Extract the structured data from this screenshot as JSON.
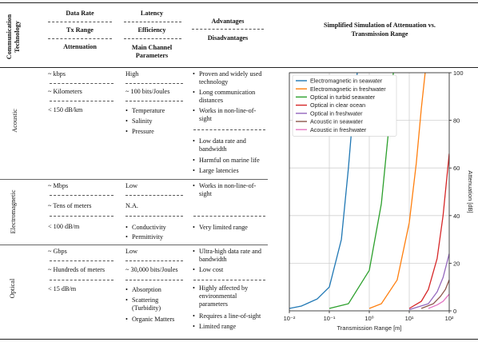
{
  "header": {
    "tech": "Communication Technology",
    "col1": [
      "Data Rate",
      "Tx Range",
      "Attenuation"
    ],
    "col2": [
      "Latency",
      "Efficiency",
      "Main Channel Parameters"
    ],
    "col3": [
      "Advantages",
      "Disadvantages"
    ],
    "col4": "Simplified Simulation of Attenuation vs. Transmission Range"
  },
  "rows": {
    "acoustic": {
      "name": "Acoustic",
      "rate": "~ kbps",
      "range": "~ Kilometers",
      "atten": "< 150 dB/km",
      "latency": "High",
      "efficiency": "~ 100 bits/Joules",
      "params": [
        "Temperature",
        "Salinity",
        "Pressure"
      ],
      "adv": [
        "Proven and widely used technology",
        "Long communication distances",
        "Works in non-line-of-sight"
      ],
      "dis": [
        "Low data rate and bandwidth",
        "Harmful on marine life",
        "Large latencies"
      ]
    },
    "electromagnetic": {
      "name": "Electromagnetic",
      "rate": "~ Mbps",
      "range": "~ Tens of meters",
      "atten": "< 100 dB/m",
      "latency": "Low",
      "efficiency": "N.A.",
      "params": [
        "Conductivity",
        "Permittivity"
      ],
      "adv": [
        "Works in non-line-of-sight"
      ],
      "dis": [
        "Very limited range"
      ]
    },
    "optical": {
      "name": "Optical",
      "rate": "~ Gbps",
      "range": "~ Hundreds of meters",
      "atten": "< 15 dB/m",
      "latency": "Low",
      "efficiency": "~ 30,000 bits/Joules",
      "params": [
        "Absorption",
        "Scattering (Turbidity)",
        "Organic Matters"
      ],
      "adv": [
        "Ultra-high data rate and bandwidth",
        "Low cost"
      ],
      "dis": [
        "Highly affected by environmental parameters",
        "Requires a line-of-sight",
        "Limited range"
      ]
    }
  },
  "chart_data": {
    "type": "line",
    "xlabel": "Transmission Range [m]",
    "ylabel": "Attenuation [dB]",
    "xscale": "log",
    "xlim": [
      0.01,
      100
    ],
    "ylim": [
      0,
      100
    ],
    "xticks": [
      "10⁻²",
      "10⁻¹",
      "10⁰",
      "10¹",
      "10²"
    ],
    "yticks": [
      0,
      20,
      40,
      60,
      80,
      100
    ],
    "grid": true,
    "legend_position": "top-left",
    "series": [
      {
        "name": "Electromagnetic in seawater",
        "color": "#1f77b4",
        "x": [
          0.01,
          0.02,
          0.05,
          0.1,
          0.2,
          0.3,
          0.4,
          0.5
        ],
        "y": [
          1,
          2,
          5,
          10,
          30,
          60,
          85,
          100
        ]
      },
      {
        "name": "Electromagnetic in freshwater",
        "color": "#ff7f0e",
        "x": [
          1,
          2,
          5,
          10,
          15,
          20,
          25
        ],
        "y": [
          1,
          3,
          13,
          37,
          62,
          85,
          100
        ]
      },
      {
        "name": "Optical in turbid seawater",
        "color": "#2ca02c",
        "x": [
          0.1,
          0.3,
          1,
          2,
          3,
          4
        ],
        "y": [
          1,
          3,
          17,
          45,
          75,
          100
        ]
      },
      {
        "name": "Optical in clear ocean",
        "color": "#d62728",
        "x": [
          10,
          20,
          30,
          50,
          70,
          100
        ],
        "y": [
          1,
          4,
          9,
          22,
          40,
          66
        ]
      },
      {
        "name": "Optical in freshwater",
        "color": "#9467bd",
        "x": [
          10,
          30,
          50,
          70,
          100
        ],
        "y": [
          0.5,
          3,
          8,
          14,
          24
        ]
      },
      {
        "name": "Acoustic in seawater",
        "color": "#8c564b",
        "x": [
          20,
          40,
          60,
          80,
          100
        ],
        "y": [
          1,
          3,
          6,
          9,
          13
        ]
      },
      {
        "name": "Acoustic in freshwater",
        "color": "#e377c2",
        "x": [
          30,
          50,
          70,
          100
        ],
        "y": [
          1,
          2.5,
          4,
          7
        ]
      }
    ]
  }
}
